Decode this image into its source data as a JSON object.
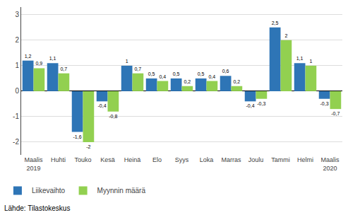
{
  "chart_data": {
    "type": "bar",
    "categories": [
      "Maalis\n2019",
      "Huhti",
      "Touko",
      "Kesä",
      "Heinä",
      "Elo",
      "Syys",
      "Loka",
      "Marras",
      "Joulu",
      "Tammi",
      "Helmi",
      "Maalis\n2020"
    ],
    "series": [
      {
        "name": "Liikevaihto",
        "color": "#2E75B6",
        "values": [
          1.2,
          1.1,
          -1.6,
          -0.4,
          1.0,
          0.5,
          0.5,
          0.5,
          0.6,
          -0.4,
          2.5,
          1.1,
          -0.3
        ],
        "value_labels": [
          "1,2",
          "1,1",
          "-1,6",
          "-0,4",
          "1",
          "0,5",
          "0,5",
          "0,5",
          "0,6",
          "-0,4",
          "2,5",
          "1,1",
          "-0,3"
        ]
      },
      {
        "name": "Myynnin määrä",
        "color": "#92D050",
        "values": [
          0.9,
          0.7,
          -2.0,
          -0.8,
          0.7,
          0.4,
          0.2,
          0.4,
          0.2,
          -0.3,
          2.0,
          1.0,
          -0.7
        ],
        "value_labels": [
          "0,9",
          "0,7",
          "-2",
          "-0,8",
          "0,7",
          "0,4",
          "0,2",
          "0,4",
          "0,2",
          "-0,3",
          "2",
          "1",
          "-0,7"
        ]
      }
    ],
    "ylim": [
      -2.5,
      3.3
    ],
    "yticks": [
      -2,
      -1,
      0,
      1,
      2,
      3
    ],
    "grid": true,
    "legend": "lower left",
    "data_labels": true,
    "annotations": [
      "Lähde: Tilastokeskus"
    ]
  }
}
